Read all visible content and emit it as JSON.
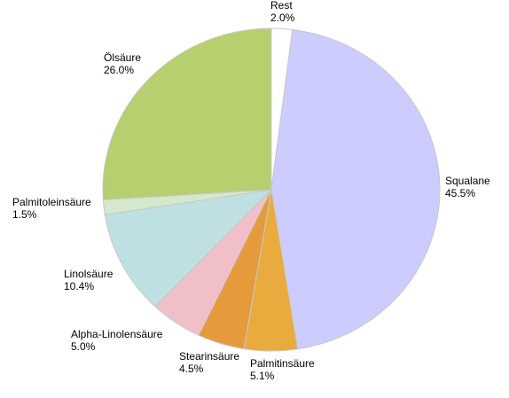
{
  "chart_data": {
    "type": "pie",
    "categories": [
      "Rest",
      "Squalane",
      "Palmitinsäure",
      "Stearinsäure",
      "Alpha-Linolensäure",
      "Linolsäure",
      "Palmitoleinsäure",
      "Ölsäure"
    ],
    "values": [
      2.0,
      45.5,
      5.1,
      4.5,
      5.0,
      10.4,
      1.5,
      26.0
    ],
    "value_labels": [
      "2.0%",
      "45.5%",
      "5.1%",
      "4.5%",
      "5.0%",
      "10.4%",
      "1.5%",
      "26.0%"
    ],
    "colors": [
      "#ffffff",
      "#ccccff",
      "#e9ab3d",
      "#e59a3c",
      "#f0bfc7",
      "#bfe0e3",
      "#d4e8cb",
      "#b6cf6f"
    ]
  }
}
